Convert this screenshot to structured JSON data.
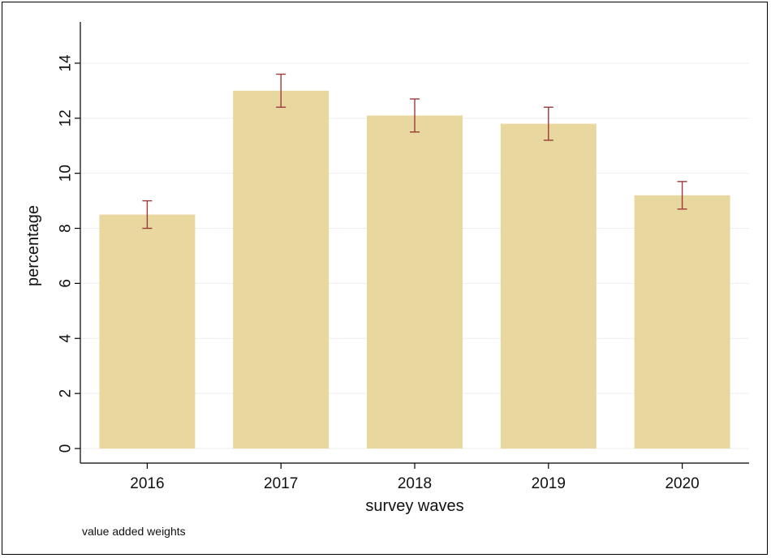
{
  "chart_data": {
    "type": "bar",
    "title": "",
    "xlabel": "survey waves",
    "ylabel": "percentage",
    "note": "value added weights",
    "categories": [
      "2016",
      "2017",
      "2018",
      "2019",
      "2020"
    ],
    "values": [
      8.5,
      13.0,
      12.1,
      11.8,
      9.2
    ],
    "error_low": [
      8.0,
      12.4,
      11.5,
      11.2,
      8.7
    ],
    "error_high": [
      9.0,
      13.6,
      12.7,
      12.4,
      9.7
    ],
    "ylim": [
      0,
      15.5
    ],
    "yticks": [
      0,
      2,
      4,
      6,
      8,
      10,
      12,
      14
    ],
    "ytick_labels": [
      "0",
      "2",
      "4",
      "6",
      "8",
      "10",
      "12",
      "14"
    ],
    "grid": true,
    "legend": "none",
    "bar_color": "#e8d8a0",
    "error_color": "#9b3a3a",
    "grid_color": "#eeeeee"
  }
}
